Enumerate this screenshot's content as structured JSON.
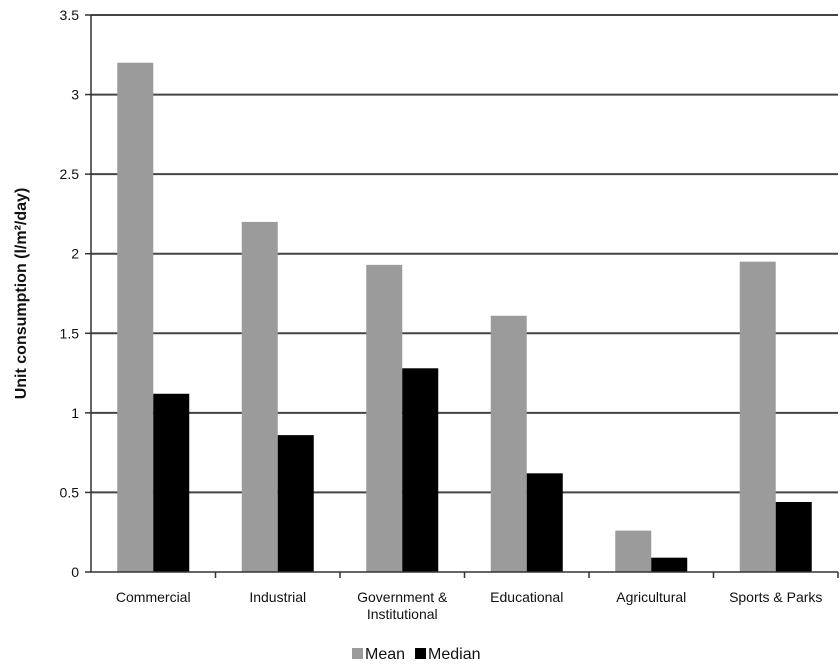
{
  "chart_data": {
    "type": "bar",
    "categories": [
      [
        "Commercial"
      ],
      [
        "Industrial"
      ],
      [
        "Government &",
        "Institutional"
      ],
      [
        "Educational"
      ],
      [
        "Agricultural"
      ],
      [
        "Sports & Parks"
      ]
    ],
    "series": [
      {
        "name": "Mean",
        "values": [
          3.2,
          2.2,
          1.93,
          1.61,
          0.26,
          1.95
        ],
        "color": "#9b9b9b"
      },
      {
        "name": "Median",
        "values": [
          1.12,
          0.86,
          1.28,
          0.62,
          0.09,
          0.44
        ],
        "color": "#000000"
      }
    ],
    "ylabel": "Unit consumption (l/m²/day)",
    "xlabel": "",
    "ylim": [
      0,
      3.5
    ],
    "yticks": [
      "0",
      "0.5",
      "1",
      "1.5",
      "2",
      "2.5",
      "3",
      "3.5"
    ],
    "grid": true,
    "legend_position": "bottom"
  }
}
